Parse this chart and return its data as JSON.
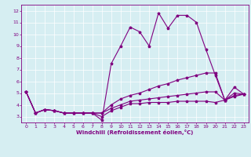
{
  "title": "",
  "xlabel": "Windchill (Refroidissement éolien,°C)",
  "ylabel": "",
  "background_color": "#d6eef2",
  "line_color": "#800080",
  "grid_color": "#ffffff",
  "xlim": [
    -0.5,
    23.5
  ],
  "ylim": [
    2.5,
    12.5
  ],
  "xticks": [
    0,
    1,
    2,
    3,
    4,
    5,
    6,
    7,
    8,
    9,
    10,
    11,
    12,
    13,
    14,
    15,
    16,
    17,
    18,
    19,
    20,
    21,
    22,
    23
  ],
  "yticks": [
    3,
    4,
    5,
    6,
    7,
    8,
    9,
    10,
    11,
    12
  ],
  "series": [
    [
      5.1,
      3.3,
      3.6,
      3.5,
      3.3,
      3.3,
      3.3,
      3.3,
      2.7,
      7.5,
      9.0,
      10.6,
      10.2,
      9.0,
      11.8,
      10.5,
      11.6,
      11.6,
      11.0,
      8.7,
      6.5,
      4.4,
      5.5,
      4.9
    ],
    [
      5.1,
      3.3,
      3.6,
      3.5,
      3.3,
      3.3,
      3.3,
      3.3,
      3.3,
      4.0,
      4.5,
      4.8,
      5.0,
      5.3,
      5.6,
      5.8,
      6.1,
      6.3,
      6.5,
      6.7,
      6.7,
      4.4,
      5.0,
      4.9
    ],
    [
      5.1,
      3.3,
      3.6,
      3.5,
      3.3,
      3.3,
      3.3,
      3.3,
      3.3,
      3.7,
      4.0,
      4.3,
      4.4,
      4.5,
      4.6,
      4.7,
      4.8,
      4.9,
      5.0,
      5.1,
      5.1,
      4.4,
      4.8,
      4.9
    ],
    [
      5.1,
      3.3,
      3.6,
      3.5,
      3.3,
      3.3,
      3.3,
      3.3,
      3.0,
      3.5,
      3.8,
      4.1,
      4.1,
      4.2,
      4.2,
      4.2,
      4.3,
      4.3,
      4.3,
      4.3,
      4.2,
      4.4,
      4.7,
      4.9
    ]
  ]
}
